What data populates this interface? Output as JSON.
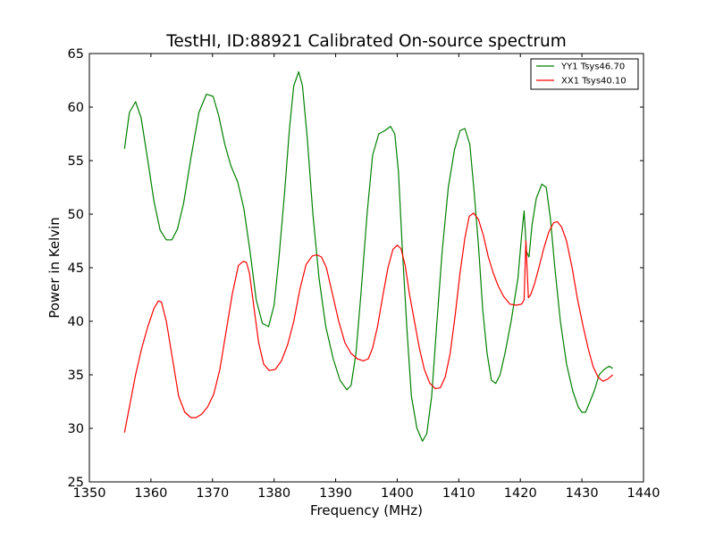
{
  "chart_data": {
    "type": "line",
    "title": "TestHI, ID:88921 Calibrated On-source spectrum",
    "xlabel": "Frequency (MHz)",
    "ylabel": "Power in Kelvin",
    "xlim": [
      1350,
      1440
    ],
    "ylim": [
      25,
      65
    ],
    "xticks": [
      1350,
      1360,
      1370,
      1380,
      1390,
      1400,
      1410,
      1420,
      1430,
      1440
    ],
    "yticks": [
      25,
      30,
      35,
      40,
      45,
      50,
      55,
      60,
      65
    ],
    "grid": false,
    "legend_position": "top-right",
    "series": [
      {
        "name": "YY1 Tsys46.70",
        "color": "#008000",
        "x": [
          1355.7,
          1356.5,
          1357.5,
          1358.4,
          1359.5,
          1360.5,
          1361.5,
          1362.5,
          1363.4,
          1364.3,
          1365.3,
          1366.5,
          1367.8,
          1369.0,
          1370.1,
          1371.0,
          1372.0,
          1373.0,
          1374.1,
          1375.1,
          1376.1,
          1377.1,
          1378.1,
          1379.1,
          1380.0,
          1380.8,
          1381.7,
          1382.5,
          1383.2,
          1384.0,
          1384.6,
          1385.4,
          1386.3,
          1387.3,
          1388.4,
          1389.6,
          1390.7,
          1391.8,
          1392.5,
          1393.3,
          1394.1,
          1395.1,
          1396.0,
          1397.0,
          1398.0,
          1398.9,
          1399.6,
          1400.2,
          1400.8,
          1401.6,
          1402.3,
          1403.2,
          1404.1,
          1404.8,
          1405.6,
          1406.4,
          1407.3,
          1408.3,
          1409.3,
          1410.2,
          1411.0,
          1411.8,
          1412.5,
          1413.2,
          1413.9,
          1414.6,
          1415.3,
          1416.0,
          1416.7,
          1417.5,
          1418.5,
          1419.6,
          1420.2,
          1420.6,
          1421.0,
          1421.4,
          1421.9,
          1422.6,
          1423.5,
          1424.2,
          1424.9,
          1425.6,
          1426.5,
          1427.5,
          1428.5,
          1429.4,
          1430.0,
          1430.6,
          1431.3,
          1432.0,
          1432.8,
          1433.6,
          1434.4,
          1435.0
        ],
        "y": [
          56.1,
          59.5,
          60.5,
          59.0,
          55.0,
          51.2,
          48.5,
          47.6,
          47.6,
          48.6,
          51.0,
          55.3,
          59.5,
          61.2,
          61.0,
          59.2,
          56.5,
          54.5,
          53.0,
          50.5,
          46.5,
          42.0,
          39.8,
          39.5,
          41.5,
          46.0,
          52.0,
          58.0,
          62.0,
          63.3,
          62.0,
          57.0,
          50.0,
          44.0,
          39.5,
          36.5,
          34.5,
          33.6,
          34.0,
          37.0,
          42.5,
          50.0,
          55.5,
          57.5,
          57.8,
          58.2,
          57.5,
          54.0,
          47.0,
          39.0,
          33.0,
          30.0,
          28.8,
          29.5,
          33.0,
          39.5,
          46.5,
          52.5,
          56.0,
          57.8,
          58.0,
          56.5,
          52.0,
          47.0,
          41.0,
          37.0,
          34.5,
          34.2,
          35.0,
          37.0,
          40.0,
          44.0,
          48.0,
          50.3,
          46.5,
          46.0,
          49.0,
          51.5,
          52.8,
          52.5,
          49.5,
          45.0,
          40.0,
          36.0,
          33.5,
          32.0,
          31.5,
          31.5,
          32.5,
          33.5,
          35.0,
          35.5,
          35.8,
          35.6
        ]
      },
      {
        "name": "XX1 Tsys40.10",
        "color": "#ff0000",
        "x": [
          1355.7,
          1356.5,
          1357.5,
          1358.5,
          1359.5,
          1360.5,
          1361.2,
          1361.7,
          1362.5,
          1363.5,
          1364.5,
          1365.5,
          1366.5,
          1367.3,
          1368.2,
          1369.2,
          1370.2,
          1371.2,
          1372.2,
          1373.2,
          1374.2,
          1375.0,
          1375.5,
          1376.0,
          1376.8,
          1377.5,
          1378.3,
          1379.2,
          1380.2,
          1381.2,
          1382.2,
          1383.2,
          1384.2,
          1385.2,
          1386.2,
          1387.0,
          1387.7,
          1388.5,
          1389.5,
          1390.5,
          1391.5,
          1392.5,
          1393.5,
          1394.5,
          1395.3,
          1396.0,
          1396.8,
          1397.7,
          1398.5,
          1399.3,
          1400.0,
          1400.6,
          1401.3,
          1402.0,
          1402.8,
          1403.6,
          1404.4,
          1405.3,
          1406.2,
          1407.0,
          1407.8,
          1408.6,
          1409.4,
          1410.2,
          1411.0,
          1411.7,
          1412.4,
          1413.2,
          1414.0,
          1414.8,
          1415.6,
          1416.4,
          1417.3,
          1418.3,
          1419.3,
          1420.2,
          1420.6,
          1420.9,
          1421.3,
          1421.7,
          1422.3,
          1423.0,
          1423.8,
          1424.6,
          1425.4,
          1426.0,
          1426.7,
          1427.5,
          1428.4,
          1429.3,
          1430.2,
          1431.0,
          1431.8,
          1432.6,
          1433.4,
          1434.2,
          1435.0
        ],
        "y": [
          29.6,
          32.0,
          35.0,
          37.5,
          39.5,
          41.2,
          41.9,
          41.8,
          40.0,
          36.5,
          33.0,
          31.5,
          31.0,
          31.0,
          31.3,
          32.0,
          33.2,
          35.5,
          39.0,
          42.5,
          45.2,
          45.6,
          45.5,
          44.5,
          41.0,
          38.0,
          36.0,
          35.4,
          35.5,
          36.3,
          37.8,
          40.0,
          43.0,
          45.3,
          46.1,
          46.2,
          46.0,
          45.0,
          42.5,
          40.0,
          38.0,
          37.0,
          36.5,
          36.3,
          36.5,
          37.5,
          39.5,
          42.5,
          45.0,
          46.7,
          47.1,
          46.8,
          45.2,
          42.5,
          40.0,
          37.5,
          35.5,
          34.2,
          33.7,
          33.8,
          34.8,
          37.0,
          40.5,
          44.5,
          47.8,
          49.8,
          50.1,
          49.5,
          48.0,
          46.0,
          44.5,
          43.3,
          42.3,
          41.6,
          41.5,
          41.6,
          42.0,
          47.5,
          42.2,
          42.5,
          43.5,
          45.0,
          46.8,
          48.3,
          49.2,
          49.3,
          48.8,
          47.5,
          45.0,
          42.0,
          39.5,
          37.5,
          35.8,
          34.8,
          34.4,
          34.6,
          35.0
        ]
      }
    ]
  }
}
